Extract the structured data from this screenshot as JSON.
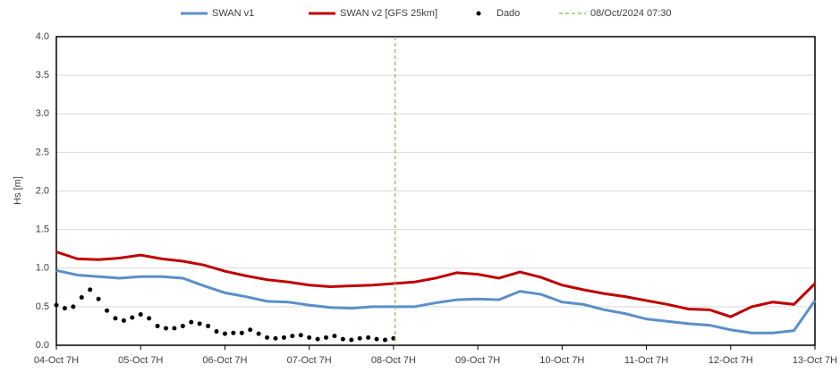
{
  "chart_data": {
    "type": "line",
    "y_label": "Hs [m]",
    "xlim": [
      0,
      9
    ],
    "xticks": [
      {
        "value": 0,
        "label": "04-Oct 7H"
      },
      {
        "value": 1,
        "label": "05-Oct 7H"
      },
      {
        "value": 2,
        "label": "06-Oct 7H"
      },
      {
        "value": 3,
        "label": "07-Oct 7H"
      },
      {
        "value": 4,
        "label": "08-Oct 7H"
      },
      {
        "value": 5,
        "label": "09-Oct 7H"
      },
      {
        "value": 6,
        "label": "10-Oct 7H"
      },
      {
        "value": 7,
        "label": "11-Oct 7H"
      },
      {
        "value": 8,
        "label": "12-Oct 7H"
      },
      {
        "value": 9,
        "label": "13-Oct 7H"
      }
    ],
    "ylim": [
      0,
      4
    ],
    "yticks": [
      {
        "value": 0,
        "label": "0.0"
      },
      {
        "value": 0.5,
        "label": "0.5"
      },
      {
        "value": 1,
        "label": "1.0"
      },
      {
        "value": 1.5,
        "label": "1.5"
      },
      {
        "value": 2,
        "label": "2.0"
      },
      {
        "value": 2.5,
        "label": "2.5"
      },
      {
        "value": 3,
        "label": "3.0"
      },
      {
        "value": 3.5,
        "label": "3.5"
      },
      {
        "value": 4,
        "label": "4.0"
      }
    ],
    "grid": true,
    "legend": "top",
    "series": [
      {
        "name": "SWAN v1",
        "color": "#5b8fc9",
        "style": "line",
        "x": [
          0,
          0.25,
          0.5,
          0.75,
          1,
          1.25,
          1.5,
          1.75,
          2,
          2.25,
          2.5,
          2.75,
          3,
          3.25,
          3.5,
          3.75,
          4,
          4.25,
          4.5,
          4.75,
          5,
          5.25,
          5.5,
          5.75,
          6,
          6.25,
          6.5,
          6.75,
          7,
          7.25,
          7.5,
          7.75,
          8,
          8.25,
          8.5,
          8.75,
          9
        ],
        "values": [
          0.97,
          0.91,
          0.89,
          0.87,
          0.89,
          0.89,
          0.87,
          0.77,
          0.68,
          0.63,
          0.57,
          0.56,
          0.52,
          0.49,
          0.48,
          0.5,
          0.5,
          0.5,
          0.55,
          0.59,
          0.6,
          0.59,
          0.7,
          0.66,
          0.56,
          0.53,
          0.46,
          0.41,
          0.34,
          0.31,
          0.28,
          0.26,
          0.2,
          0.16,
          0.16,
          0.19,
          0.58
        ]
      },
      {
        "name": "SWAN v2 [GFS 25km]",
        "color": "#c00000",
        "style": "line",
        "x": [
          0,
          0.25,
          0.5,
          0.75,
          1,
          1.25,
          1.5,
          1.75,
          2,
          2.25,
          2.5,
          2.75,
          3,
          3.25,
          3.5,
          3.75,
          4,
          4.25,
          4.5,
          4.75,
          5,
          5.25,
          5.5,
          5.75,
          6,
          6.25,
          6.5,
          6.75,
          7,
          7.25,
          7.5,
          7.75,
          8,
          8.25,
          8.5,
          8.75,
          9
        ],
        "values": [
          1.21,
          1.12,
          1.11,
          1.13,
          1.17,
          1.12,
          1.09,
          1.04,
          0.96,
          0.9,
          0.85,
          0.82,
          0.78,
          0.76,
          0.77,
          0.78,
          0.8,
          0.82,
          0.87,
          0.94,
          0.92,
          0.87,
          0.95,
          0.88,
          0.78,
          0.72,
          0.67,
          0.63,
          0.58,
          0.53,
          0.47,
          0.46,
          0.37,
          0.5,
          0.56,
          0.53,
          0.8
        ]
      },
      {
        "name": "Dado",
        "color": "#000000",
        "style": "dots",
        "x": [
          0,
          0.1,
          0.2,
          0.3,
          0.4,
          0.5,
          0.6,
          0.7,
          0.8,
          0.9,
          1,
          1.1,
          1.2,
          1.3,
          1.4,
          1.5,
          1.6,
          1.7,
          1.8,
          1.9,
          2,
          2.1,
          2.2,
          2.3,
          2.4,
          2.5,
          2.6,
          2.7,
          2.8,
          2.9,
          3,
          3.1,
          3.2,
          3.3,
          3.4,
          3.5,
          3.6,
          3.7,
          3.8,
          3.9,
          4
        ],
        "values": [
          0.52,
          0.48,
          0.5,
          0.62,
          0.72,
          0.6,
          0.45,
          0.35,
          0.32,
          0.36,
          0.4,
          0.35,
          0.25,
          0.22,
          0.22,
          0.25,
          0.3,
          0.28,
          0.25,
          0.18,
          0.15,
          0.16,
          0.16,
          0.2,
          0.15,
          0.1,
          0.09,
          0.1,
          0.12,
          0.13,
          0.1,
          0.08,
          0.1,
          0.12,
          0.08,
          0.07,
          0.09,
          0.1,
          0.08,
          0.07,
          0.09
        ]
      }
    ],
    "vline": {
      "label": "08/Oct/2024 07:30",
      "x": 4.02,
      "color": "#7cbf3c"
    }
  }
}
